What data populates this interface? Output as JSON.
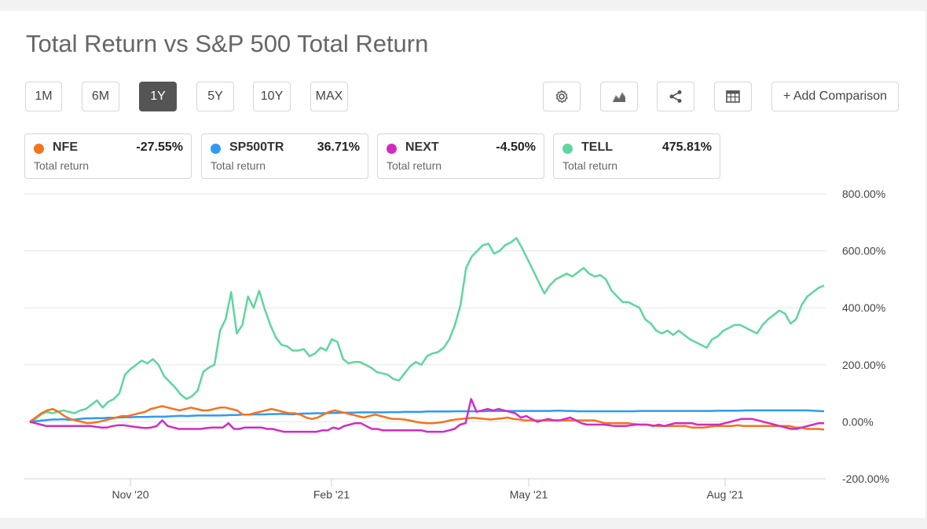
{
  "header": {
    "title": "Total Return vs S&P 500 Total Return"
  },
  "range_buttons": [
    {
      "label": "1M",
      "active": false
    },
    {
      "label": "6M",
      "active": false
    },
    {
      "label": "1Y",
      "active": true
    },
    {
      "label": "5Y",
      "active": false
    },
    {
      "label": "10Y",
      "active": false
    },
    {
      "label": "MAX",
      "active": false
    }
  ],
  "toolbar": {
    "icons": [
      "gear-icon",
      "area-chart-icon",
      "share-icon",
      "table-icon"
    ],
    "add_comparison_label": "+ Add Comparison"
  },
  "legend": [
    {
      "symbol": "NFE",
      "value": "-27.55%",
      "sub": "Total return",
      "color": "#f4731d"
    },
    {
      "symbol": "SP500TR",
      "value": "36.71%",
      "sub": "Total return",
      "color": "#2e9bf0"
    },
    {
      "symbol": "NEXT",
      "value": "-4.50%",
      "sub": "Total return",
      "color": "#d22bc4"
    },
    {
      "symbol": "TELL",
      "value": "475.81%",
      "sub": "Total return",
      "color": "#5fd69d"
    }
  ],
  "chart_data": {
    "type": "line",
    "x_ticks": [
      "Nov '20",
      "Feb '21",
      "May '21",
      "Aug '21"
    ],
    "y_ticks": [
      "800.00%",
      "600.00%",
      "400.00%",
      "200.00%",
      "0.00%",
      "-200.00%"
    ],
    "ylim": [
      -200,
      800
    ],
    "y_unit": "%",
    "grid": true,
    "series": [
      {
        "name": "TELL",
        "color": "#5fd69d",
        "values": [
          0,
          10,
          25,
          35,
          30,
          35,
          40,
          35,
          30,
          40,
          45,
          60,
          75,
          50,
          70,
          80,
          100,
          165,
          185,
          200,
          215,
          205,
          220,
          200,
          160,
          140,
          120,
          95,
          80,
          90,
          110,
          175,
          190,
          200,
          320,
          360,
          455,
          310,
          340,
          440,
          400,
          460,
          395,
          340,
          295,
          270,
          265,
          250,
          250,
          255,
          230,
          240,
          260,
          250,
          290,
          280,
          220,
          205,
          210,
          210,
          200,
          190,
          175,
          170,
          165,
          150,
          145,
          170,
          195,
          210,
          200,
          230,
          240,
          245,
          260,
          290,
          340,
          410,
          540,
          580,
          600,
          620,
          625,
          590,
          600,
          620,
          630,
          645,
          610,
          570,
          530,
          490,
          450,
          480,
          500,
          510,
          520,
          510,
          525,
          540,
          520,
          510,
          515,
          500,
          460,
          440,
          420,
          420,
          410,
          400,
          360,
          345,
          320,
          310,
          320,
          305,
          320,
          305,
          290,
          280,
          270,
          260,
          290,
          300,
          320,
          330,
          340,
          340,
          330,
          320,
          310,
          340,
          360,
          375,
          390,
          380,
          345,
          360,
          410,
          440,
          455,
          470,
          478
        ]
      },
      {
        "name": "SP500TR",
        "color": "#2e9bf0",
        "values": [
          0,
          2,
          4,
          6,
          8,
          8,
          9,
          7,
          8,
          10,
          12,
          12,
          13,
          13,
          14,
          14,
          15,
          16,
          16,
          17,
          17,
          17,
          18,
          18,
          18,
          19,
          20,
          21,
          20,
          21,
          22,
          22,
          22,
          22,
          22,
          23,
          24,
          24,
          25,
          25,
          26,
          26,
          26,
          27,
          27,
          28,
          27,
          26,
          28,
          29,
          29,
          30,
          30,
          30,
          31,
          31,
          32,
          32,
          32,
          33,
          33,
          33,
          33,
          33,
          34,
          34,
          34,
          35,
          35,
          35,
          35,
          36,
          36,
          36,
          36,
          36,
          37,
          37,
          37,
          37,
          37,
          37,
          38,
          38,
          38,
          38,
          38,
          38,
          38,
          38,
          38,
          38,
          38,
          38,
          39,
          39,
          38,
          38,
          37,
          37,
          37,
          37,
          37,
          37,
          37,
          37,
          37,
          37,
          37,
          38,
          38,
          38,
          38,
          38,
          38,
          38,
          38,
          38,
          38,
          38,
          38,
          38,
          38,
          39,
          39,
          39,
          39,
          39,
          40,
          40,
          40,
          40,
          40,
          40,
          40,
          40,
          40,
          40,
          40,
          40,
          39,
          38,
          37
        ]
      },
      {
        "name": "NFE",
        "color": "#f4731d",
        "values": [
          0,
          15,
          30,
          40,
          45,
          35,
          20,
          10,
          5,
          0,
          -5,
          -3,
          0,
          5,
          10,
          15,
          20,
          20,
          25,
          30,
          35,
          45,
          50,
          55,
          50,
          45,
          40,
          45,
          50,
          45,
          40,
          40,
          45,
          50,
          50,
          45,
          40,
          25,
          25,
          30,
          35,
          40,
          45,
          40,
          35,
          30,
          30,
          25,
          15,
          10,
          15,
          25,
          35,
          40,
          35,
          30,
          25,
          20,
          15,
          20,
          25,
          20,
          15,
          10,
          10,
          8,
          5,
          0,
          -3,
          -5,
          -5,
          -3,
          0,
          5,
          8,
          10,
          12,
          14,
          12,
          10,
          8,
          10,
          12,
          15,
          10,
          8,
          5,
          5,
          5,
          5,
          5,
          5,
          5,
          5,
          5,
          5,
          5,
          5,
          5,
          0,
          -5,
          -5,
          -5,
          -5,
          -5,
          -8,
          -10,
          -10,
          -12,
          -15,
          -15,
          -15,
          -15,
          -15,
          -15,
          -20,
          -20,
          -20,
          -18,
          -15,
          -15,
          -15,
          -15,
          -12,
          -15,
          -15,
          -15,
          -15,
          -15,
          -15,
          -15,
          -15,
          -15,
          -20,
          -20,
          -25,
          -25,
          -25,
          -27
        ]
      },
      {
        "name": "NEXT",
        "color": "#d22bc4",
        "values": [
          0,
          -5,
          -10,
          -15,
          -15,
          -15,
          -15,
          -15,
          -15,
          -15,
          -15,
          -15,
          -18,
          -20,
          -20,
          -15,
          -12,
          -12,
          -15,
          -18,
          -20,
          -22,
          -20,
          -15,
          5,
          -15,
          -20,
          -25,
          -25,
          -25,
          -25,
          -25,
          -22,
          -20,
          -20,
          -20,
          -5,
          -25,
          -25,
          -20,
          -20,
          -20,
          -20,
          -25,
          -25,
          -30,
          -35,
          -35,
          -35,
          -35,
          -35,
          -35,
          -35,
          -30,
          -30,
          -20,
          -25,
          -15,
          -10,
          -5,
          -5,
          -15,
          -25,
          -25,
          -30,
          -30,
          -30,
          -30,
          -30,
          -30,
          -30,
          -30,
          -35,
          -35,
          -35,
          -35,
          -30,
          -25,
          -10,
          -5,
          80,
          35,
          40,
          45,
          40,
          45,
          40,
          35,
          30,
          15,
          20,
          10,
          0,
          5,
          10,
          5,
          5,
          10,
          15,
          5,
          -5,
          -10,
          -10,
          -10,
          -10,
          -12,
          -15,
          -15,
          -15,
          -12,
          -10,
          -10,
          -10,
          -15,
          -10,
          -15,
          -10,
          -5,
          -5,
          -5,
          -5,
          -10,
          -10,
          -10,
          -10,
          -10,
          -5,
          0,
          5,
          10,
          10,
          10,
          5,
          0,
          -5,
          -10,
          -15,
          -20,
          -25,
          -25,
          -20,
          -15,
          -10,
          -5,
          -5
        ]
      }
    ]
  }
}
